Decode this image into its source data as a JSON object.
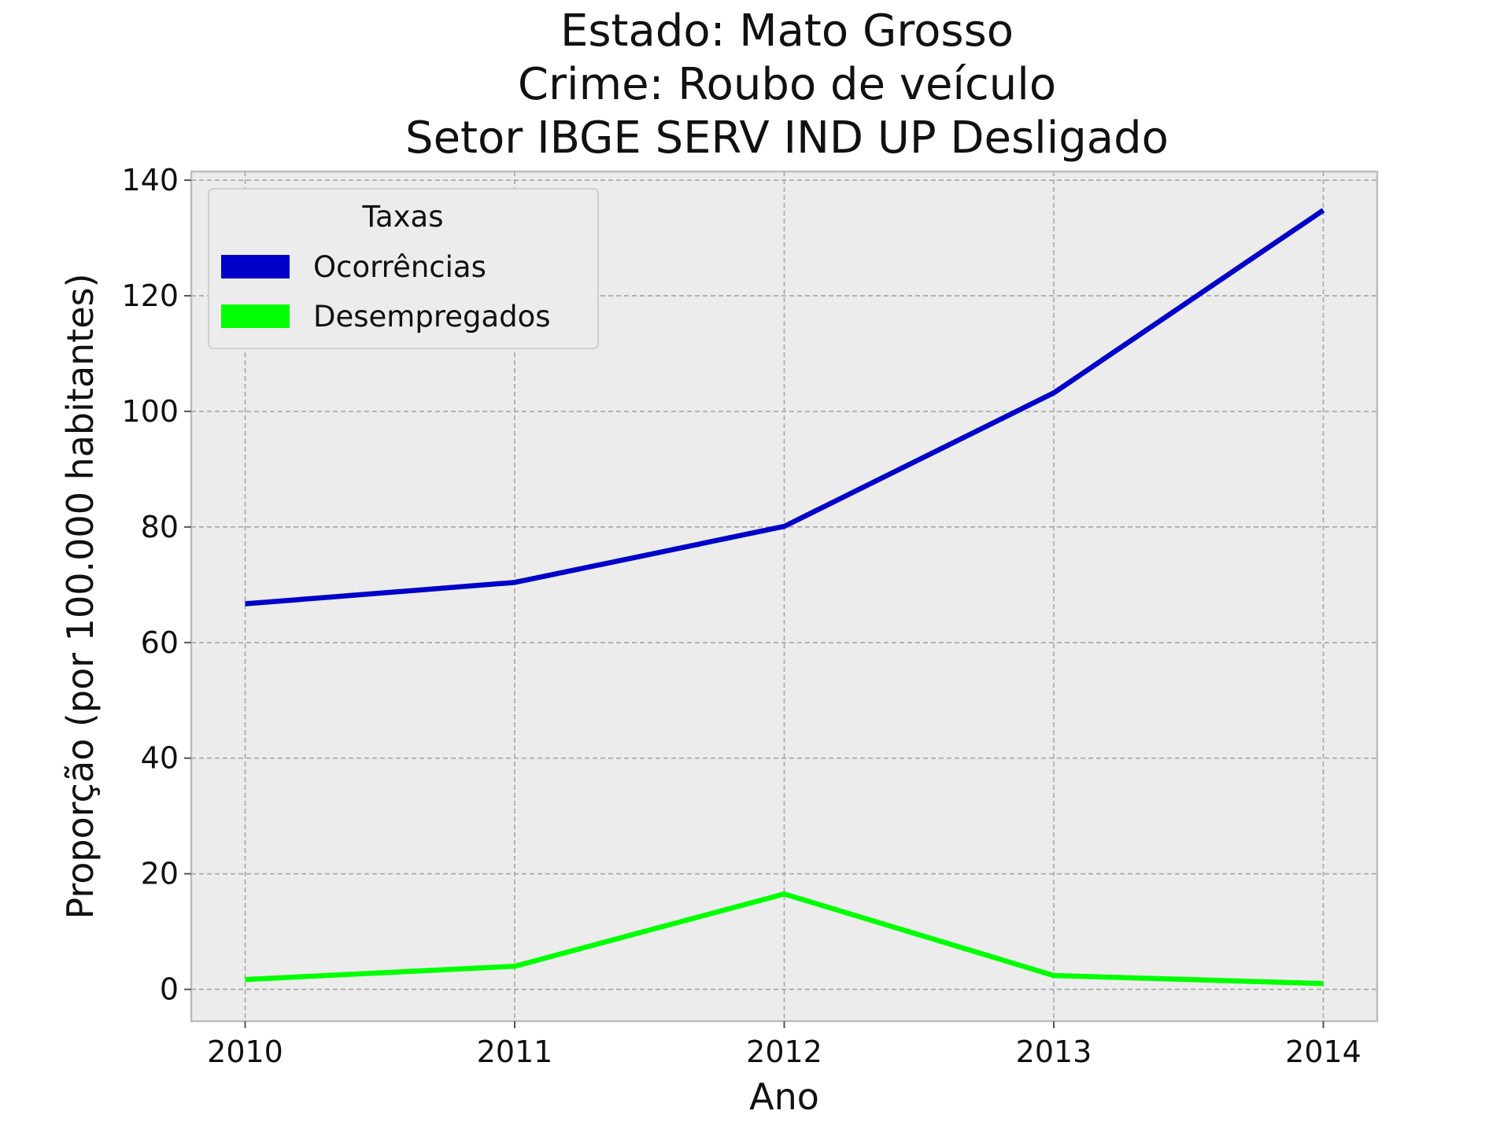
{
  "title_lines": [
    "Estado: Mato Grosso",
    "Crime: Roubo de veículo",
    "Setor IBGE  SERV IND UP   Desligado"
  ],
  "colors": {
    "background": "#ffffff",
    "plot_background": "#ececec",
    "grid": "#a6a6a6",
    "spine": "#bcbcbc",
    "ocorrencias": "#0000c8",
    "desempregados": "#00ff00"
  },
  "chart_data": {
    "type": "line",
    "x": [
      2010,
      2011,
      2012,
      2013,
      2014
    ],
    "series": [
      {
        "name": "Ocorrências",
        "values": [
          66.7,
          70.4,
          80.1,
          103.2,
          134.8
        ]
      },
      {
        "name": "Desempregados",
        "values": [
          1.7,
          4.0,
          16.5,
          2.4,
          1.0
        ]
      }
    ],
    "xlabel": "Ano",
    "ylabel": "Proporção (por 100.000 habitantes)",
    "xticks": [
      "2010",
      "2011",
      "2012",
      "2013",
      "2014"
    ],
    "yticks": [
      "0",
      "20",
      "40",
      "60",
      "80",
      "100",
      "120",
      "140"
    ],
    "ylim": [
      -5.5,
      141.5
    ],
    "xlim": [
      2009.8,
      2014.2
    ],
    "grid": true,
    "legend": {
      "title": "Taxas",
      "position": "upper-left"
    }
  }
}
